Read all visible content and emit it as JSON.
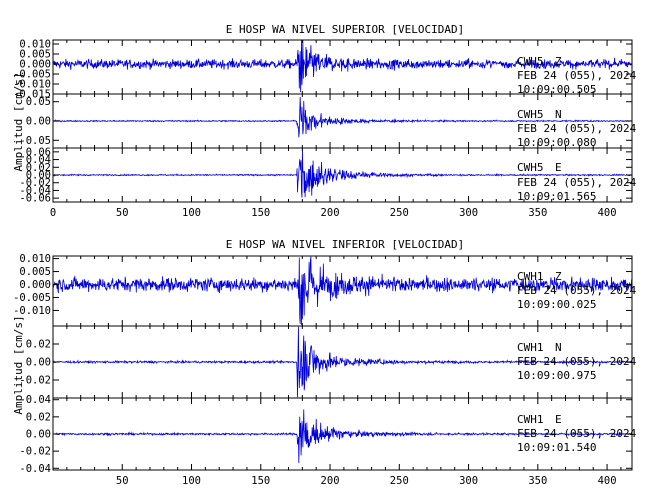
{
  "chart_data": [
    {
      "type": "line",
      "title": "E HOSP WA NIVEL SUPERIOR [VELOCIDAD]",
      "ylabel": "Amplitud [cm/s]",
      "xlabel": "",
      "xlim": [
        0,
        418
      ],
      "xticks": [
        "0",
        "50",
        "100",
        "150",
        "200",
        "250",
        "300",
        "350",
        "400"
      ],
      "panels": [
        {
          "component": "CWH5 Z",
          "station": "CWH5",
          "channel": "Z",
          "date": "FEB 24 (055), 2024",
          "time": "10:09:00.505",
          "ylim": [
            -0.015,
            0.012
          ],
          "yticks": [
            "0.010",
            "0.005",
            "0.000",
            "-0.005",
            "-0.010",
            "-0.015"
          ],
          "noise": 0.0016,
          "peak": 0.011,
          "decay": 9,
          "coda": 0.3,
          "color": "#0000dd"
        },
        {
          "component": "CWH5 N",
          "station": "CWH5",
          "channel": "N",
          "date": "FEB 24 (055), 2024",
          "time": "10:09:00.080",
          "ylim": [
            -0.07,
            0.07
          ],
          "yticks": [
            "0.05",
            "0.00",
            "-0.05"
          ],
          "noise": 0.0012,
          "peak": 0.045,
          "decay": 8,
          "coda": 0.25,
          "color": "#0000dd"
        },
        {
          "component": "CWH5 E",
          "station": "CWH5",
          "channel": "E",
          "date": "FEB 24 (055), 2024",
          "time": "10:09:01.565",
          "ylim": [
            -0.07,
            0.07
          ],
          "yticks": [
            "0.06",
            "0.04",
            "0.02",
            "0.00",
            "-0.02",
            "-0.04",
            "-0.06"
          ],
          "noise": 0.0012,
          "peak": 0.06,
          "decay": 10,
          "coda": 0.3,
          "color": "#0000dd"
        }
      ]
    },
    {
      "type": "line",
      "title": "E HOSP WA NIVEL INFERIOR [VELOCIDAD]",
      "ylabel": "Amplitud [cm/s]",
      "xlabel": "",
      "xlim": [
        0,
        418
      ],
      "xticks": [
        "50",
        "100",
        "150",
        "200",
        "250",
        "300",
        "350",
        "400"
      ],
      "panels": [
        {
          "component": "CWH1 Z",
          "station": "CWH1",
          "channel": "Z",
          "date": "FEB 24 (055), 2024",
          "time": "10:09:00.025",
          "ylim": [
            -0.016,
            0.011
          ],
          "yticks": [
            "0.010",
            "0.005",
            "0.000",
            "-0.005",
            "-0.010"
          ],
          "noise": 0.0019,
          "peak": 0.014,
          "decay": 8,
          "coda": 0.35,
          "color": "#0000dd"
        },
        {
          "component": "CWH1 N",
          "station": "CWH1",
          "channel": "N",
          "date": "FEB 24 (055), 2024",
          "time": "10:09:00.975",
          "ylim": [
            -0.04,
            0.04
          ],
          "yticks": [
            "0.02",
            "0.00",
            "-0.02"
          ],
          "noise": 0.0008,
          "peak": 0.035,
          "decay": 8,
          "coda": 0.25,
          "color": "#0000dd"
        },
        {
          "component": "CWH1 E",
          "station": "CWH1",
          "channel": "E",
          "date": "FEB 24 (055), 2024",
          "time": "10:09:01.540",
          "ylim": [
            -0.042,
            0.042
          ],
          "yticks": [
            "0.04",
            "0.02",
            "0.00",
            "-0.02",
            "-0.04"
          ],
          "noise": 0.0008,
          "peak": 0.03,
          "decay": 8,
          "coda": 0.25,
          "color": "#0000dd"
        }
      ],
      "event_onset_s": 176
    }
  ]
}
